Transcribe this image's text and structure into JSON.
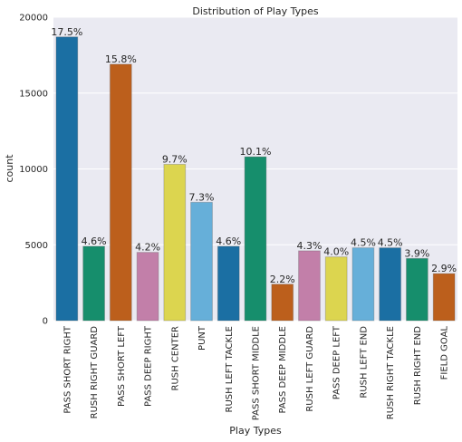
{
  "chart_data": {
    "type": "bar",
    "title": "Distribution of Play Types",
    "xlabel": "Play Types",
    "ylabel": "count",
    "categories": [
      "PASS SHORT RIGHT",
      "RUSH RIGHT GUARD",
      "PASS SHORT LEFT",
      "PASS DEEP RIGHT",
      "RUSH CENTER",
      "PUNT",
      "RUSH LEFT TACKLE",
      "PASS SHORT MIDDLE",
      "PASS DEEP MIDDLE",
      "RUSH LEFT GUARD",
      "PASS DEEP LEFT",
      "RUSH LEFT END",
      "RUSH RIGHT TACKLE",
      "RUSH RIGHT END",
      "FIELD GOAL"
    ],
    "values": [
      18700,
      4900,
      16900,
      4500,
      10300,
      7800,
      4900,
      10800,
      2400,
      4600,
      4200,
      4800,
      4800,
      4100,
      3100
    ],
    "annotations": [
      "17.5%",
      "4.6%",
      "15.8%",
      "4.2%",
      "9.7%",
      "7.3%",
      "4.6%",
      "10.1%",
      "2.2%",
      "4.3%",
      "4.0%",
      "4.5%",
      "4.5%",
      "3.9%",
      "2.9%"
    ],
    "colors": [
      "#1b6fa3",
      "#168e6c",
      "#bc5f1c",
      "#c27fa9",
      "#dcd54f",
      "#66afd9",
      "#1b6fa3",
      "#168e6c",
      "#bc5f1c",
      "#c27fa9",
      "#dcd54f",
      "#66afd9",
      "#1b6fa3",
      "#168e6c",
      "#bc5f1c"
    ],
    "ylim": [
      0,
      20000
    ],
    "yticks": [
      0,
      5000,
      10000,
      15000,
      20000
    ],
    "grid": true
  }
}
